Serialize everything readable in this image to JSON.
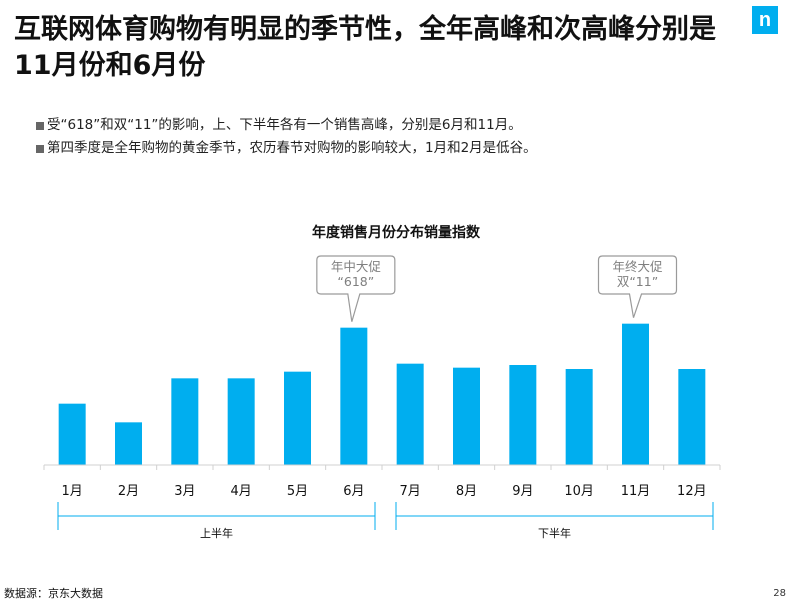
{
  "logo": {
    "letter": "n",
    "color": "#00aeef"
  },
  "header": {
    "title": "互联网体育购物有明显的季节性，全年高峰和次高峰分别是11月份和6月份"
  },
  "bullets": [
    "受“618”和双“11”的影响，上、下半年各有一个销售高峰，分别是6月和11月。",
    "第四季度是全年购物的黄金季节，农历春节对购物的影响较大，1月和2月是低谷。"
  ],
  "chart_data": {
    "type": "bar",
    "title": "年度销售月份分布销量指数",
    "categories": [
      "1月",
      "2月",
      "3月",
      "4月",
      "5月",
      "6月",
      "7月",
      "8月",
      "9月",
      "10月",
      "11月",
      "12月"
    ],
    "values": [
      46,
      32,
      65,
      65,
      70,
      103,
      76,
      73,
      75,
      72,
      106,
      72
    ],
    "ylim": [
      0,
      120
    ],
    "bar_color": "#00aeef",
    "grid": false,
    "annotations": [
      {
        "category": "6月",
        "lines": [
          "年中大促",
          "“618”"
        ]
      },
      {
        "category": "11月",
        "lines": [
          "年终大促",
          "双“11”"
        ]
      }
    ],
    "brackets": [
      {
        "label": "上半年",
        "from": "1月",
        "to": "6月"
      },
      {
        "label": "下半年",
        "from": "7月",
        "to": "12月"
      }
    ]
  },
  "footer": {
    "source": "数据源：京东大数据",
    "page": "28"
  }
}
